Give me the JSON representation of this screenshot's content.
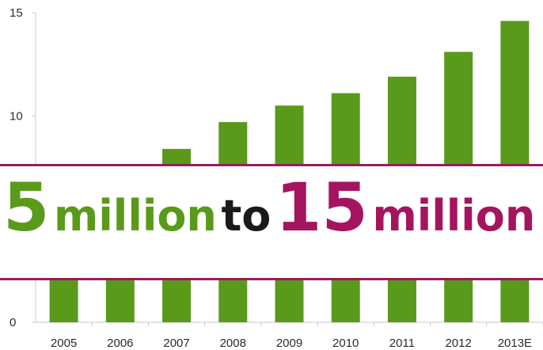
{
  "chart_data": {
    "type": "bar",
    "categories": [
      "2005",
      "2006",
      "2007",
      "2008",
      "2009",
      "2010",
      "2011",
      "2012",
      "2013E"
    ],
    "values": [
      5,
      5.2,
      8.4,
      9.7,
      10.5,
      11.1,
      11.9,
      13.1,
      14.6
    ],
    "ylim": [
      0,
      15
    ],
    "yticks": [
      "0",
      "10",
      "15"
    ],
    "bar_color": "#5a9a1b",
    "title": "",
    "xlabel": "",
    "ylabel": "",
    "grid": false
  },
  "banner": {
    "from_number": "5",
    "from_unit": "million",
    "connector": "to",
    "to_number": "15",
    "to_unit": "million",
    "number_color_from": "#5a9a1b",
    "number_color_to": "#a4145f",
    "rule_color": "#9b1b5e"
  }
}
